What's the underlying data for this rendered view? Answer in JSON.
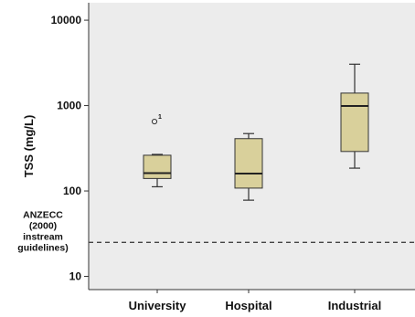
{
  "chart_data": {
    "type": "box",
    "title": "",
    "ylabel": "TSS (mg/L)",
    "xlabel": "",
    "y_scale": "log",
    "ylim": [
      7,
      16000
    ],
    "y_ticks": [
      {
        "value": 10,
        "label": "10"
      },
      {
        "value": 100,
        "label": "100"
      },
      {
        "value": 1000,
        "label": "1000"
      },
      {
        "value": 10000,
        "label": "10000"
      }
    ],
    "categories": [
      "University",
      "Hospital",
      "Industrial"
    ],
    "boxes": [
      {
        "category": "University",
        "min": 112,
        "q1": 140,
        "median": 162,
        "q3": 262,
        "max": 268,
        "outliers": [
          {
            "value": 650,
            "label": "1"
          }
        ]
      },
      {
        "category": "Hospital",
        "min": 78,
        "q1": 108,
        "median": 160,
        "q3": 410,
        "max": 470,
        "outliers": []
      },
      {
        "category": "Industrial",
        "min": 185,
        "q1": 290,
        "median": 990,
        "q3": 1400,
        "max": 3050,
        "outliers": []
      }
    ],
    "guideline": {
      "value": 25,
      "label_lines": [
        "ANZECC",
        "(2000)",
        "instream",
        "guidelines)"
      ]
    },
    "grid": false,
    "legend": "none",
    "colors": {
      "plot_background": "#ececec",
      "box_fill": "#d9d09b",
      "box_stroke": "#333333",
      "axis": "#333333"
    }
  }
}
